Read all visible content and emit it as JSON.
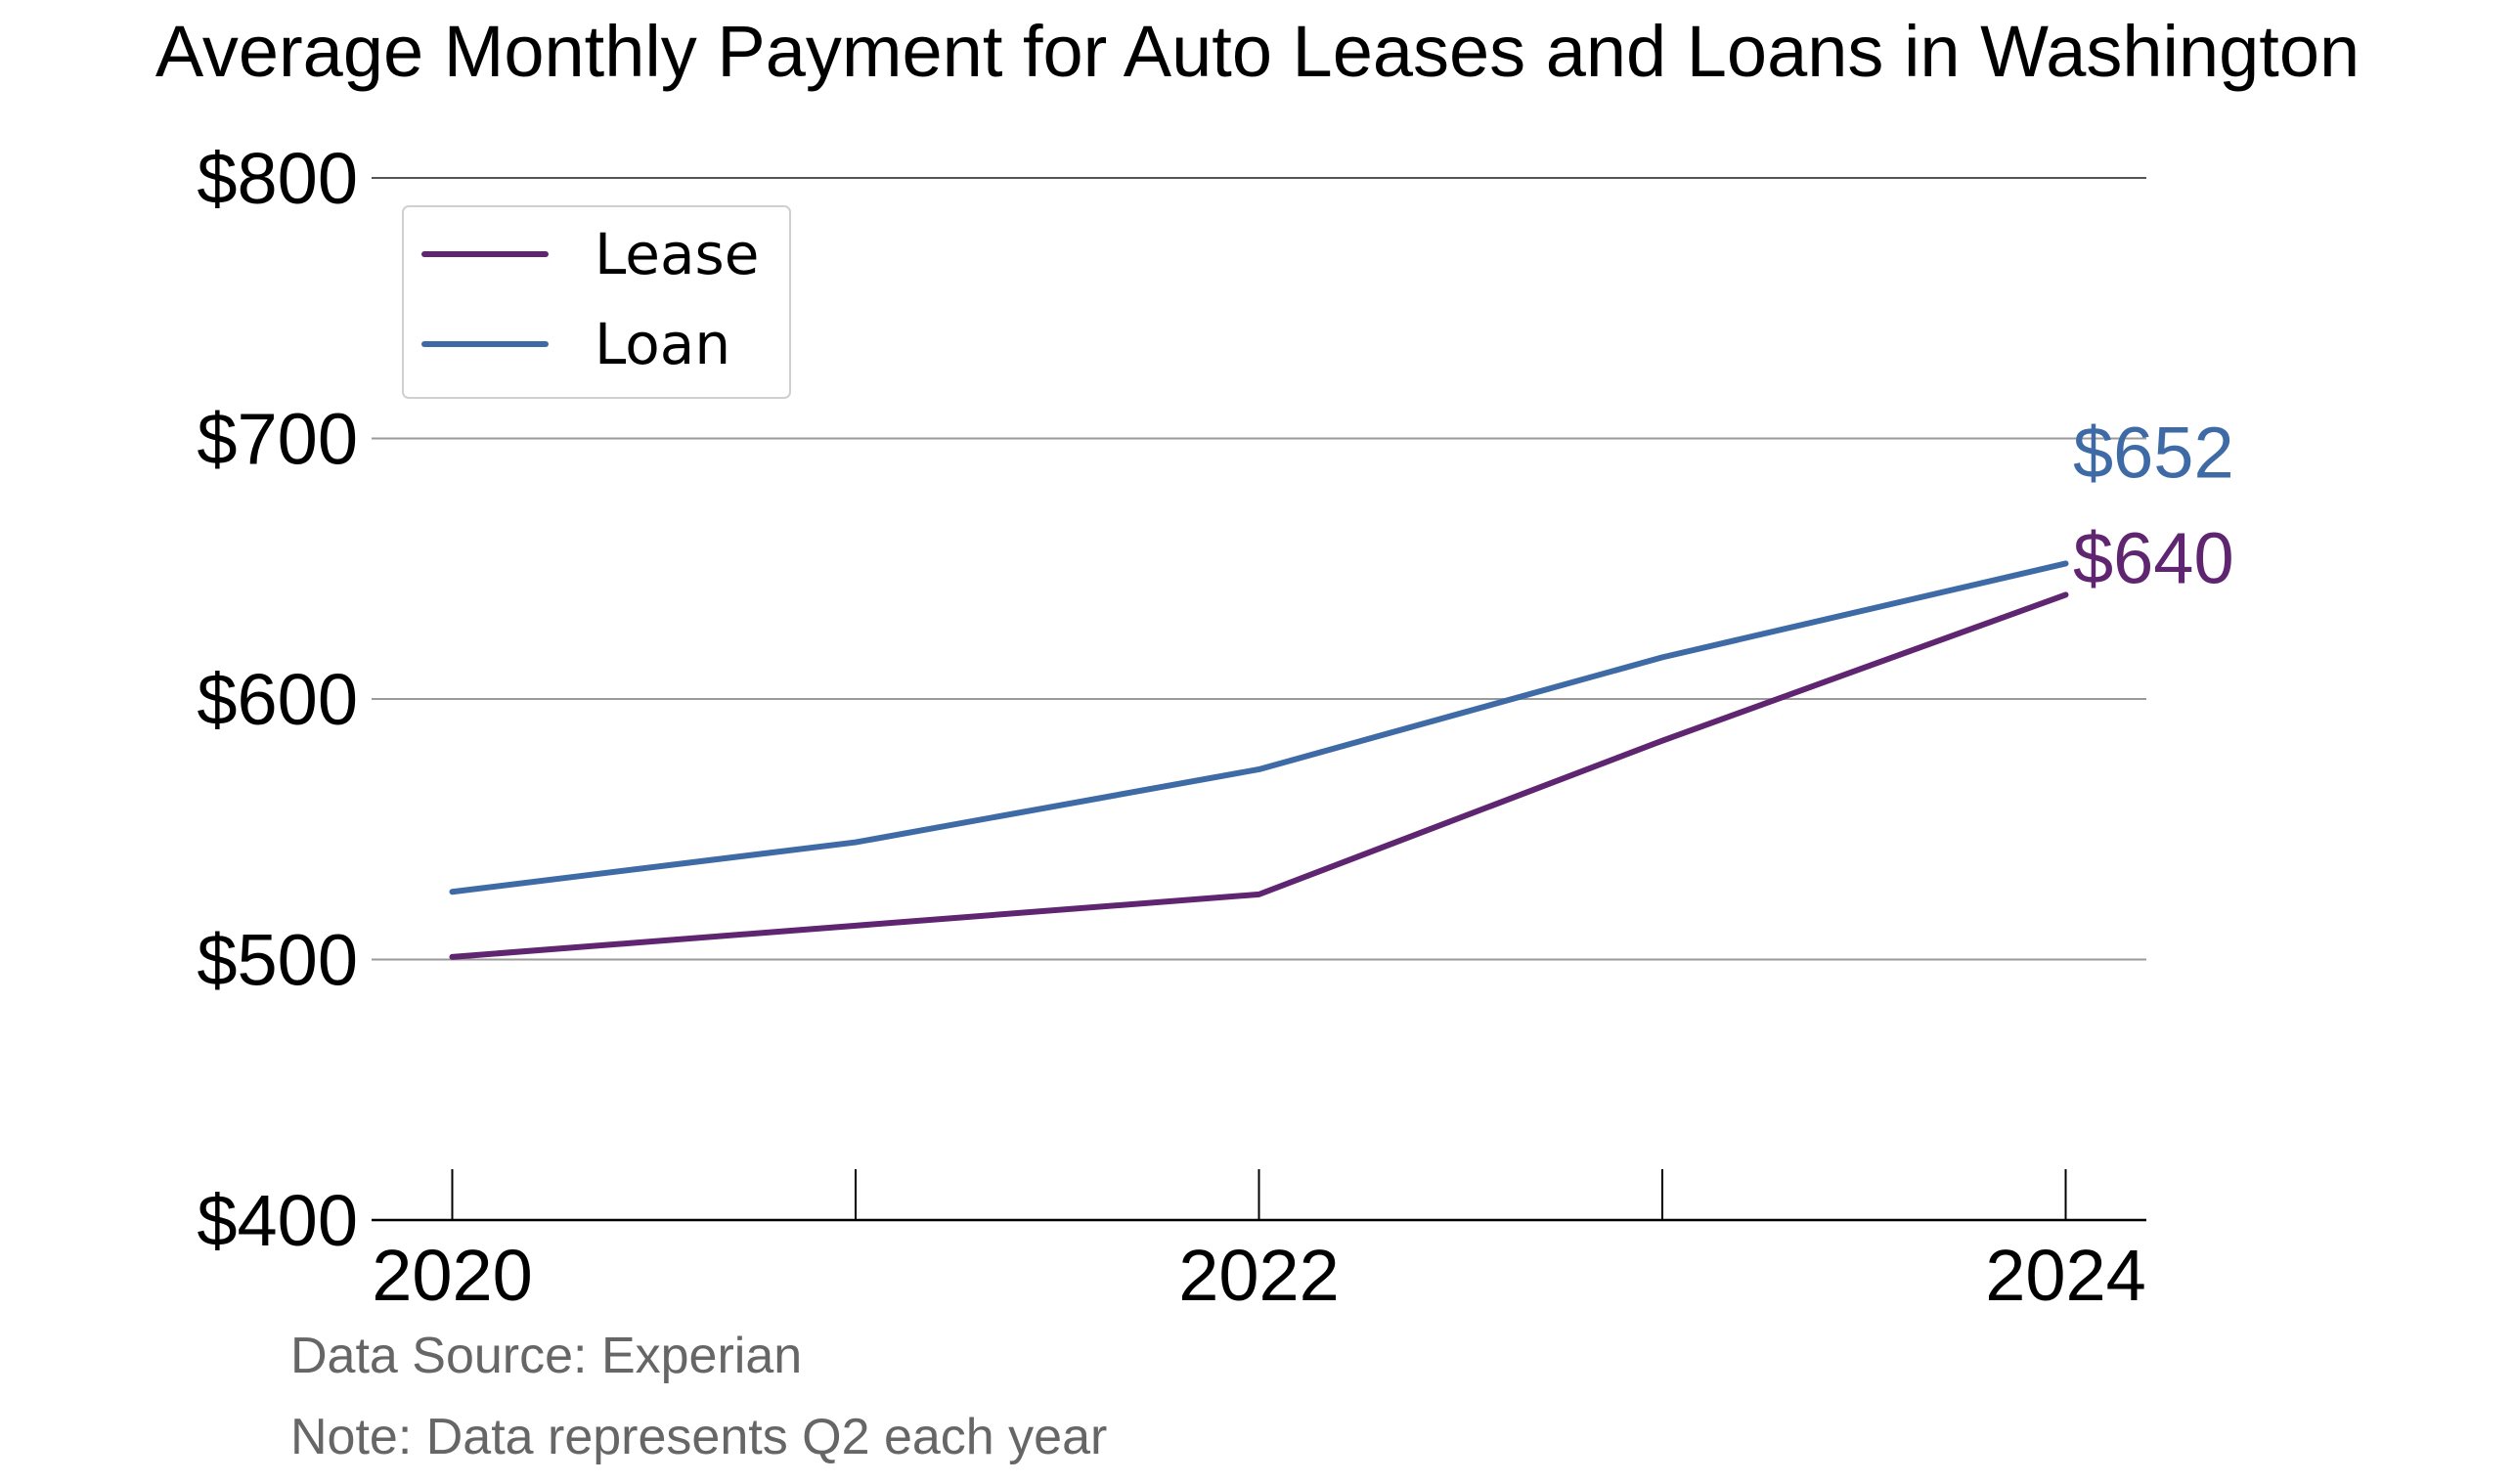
{
  "chart_data": {
    "type": "line",
    "title": "Average Monthly Payment for Auto Leases and Loans in Washington",
    "xlabel": "",
    "ylabel": "",
    "x": [
      2020,
      2021,
      2022,
      2023,
      2024
    ],
    "x_tick_labels": [
      "2020",
      "2022",
      "2024"
    ],
    "xlim": [
      2019.8,
      2024.2
    ],
    "ylim": [
      400,
      800
    ],
    "y_ticks": [
      400,
      500,
      600,
      700,
      800
    ],
    "y_tick_labels": [
      "$400",
      "$500",
      "$600",
      "$700",
      "$800"
    ],
    "grid": true,
    "legend_position": "top-left",
    "series": [
      {
        "name": "Lease",
        "color": "#5f2570",
        "values": [
          501,
          513,
          525,
          584,
          640
        ],
        "end_label": "$640"
      },
      {
        "name": "Loan",
        "color": "#3e6aa5",
        "values": [
          526,
          545,
          573,
          616,
          652
        ],
        "end_label": "$652"
      }
    ],
    "annotations": [
      "Data Source: Experian",
      "Note: Data represents Q2 each year"
    ]
  }
}
